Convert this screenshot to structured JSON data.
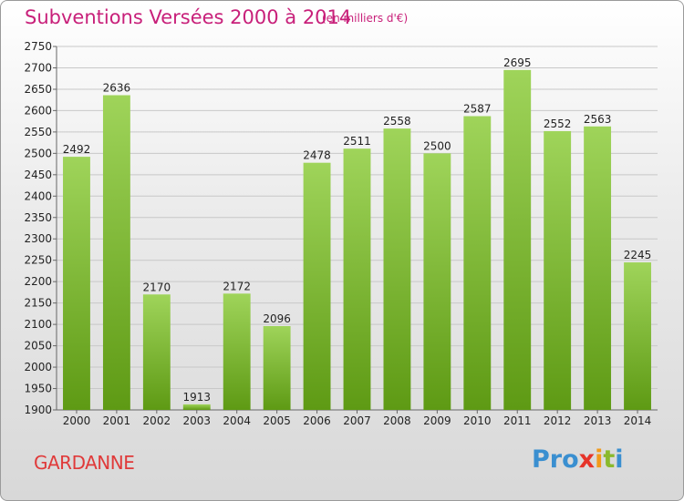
{
  "title": "Subventions Versées 2000 à 2014",
  "subtitle": "(en milliers d'€)",
  "city": "GARDANNE",
  "logo": {
    "p1": "Pro",
    "p2": "x",
    "p3": "i",
    "p4": "t",
    "p5": "i"
  },
  "colors": {
    "title": "#c8207a",
    "bar_top": "#9fd45a",
    "bar_bottom": "#5e9a14",
    "city": "#e03a3a"
  },
  "chart_data": {
    "type": "bar",
    "categories": [
      "2000",
      "2001",
      "2002",
      "2003",
      "2004",
      "2005",
      "2006",
      "2007",
      "2008",
      "2009",
      "2010",
      "2011",
      "2012",
      "2013",
      "2014"
    ],
    "values": [
      2492,
      2636,
      2170,
      1913,
      2172,
      2096,
      2478,
      2511,
      2558,
      2500,
      2587,
      2695,
      2552,
      2563,
      2245
    ],
    "title": "Subventions Versées 2000 à 2014",
    "subtitle": "(en milliers d'€)",
    "xlabel": "",
    "ylabel": "",
    "ylim": [
      1900,
      2750
    ],
    "yticks": [
      1900,
      1950,
      2000,
      2050,
      2100,
      2150,
      2200,
      2250,
      2300,
      2350,
      2400,
      2450,
      2500,
      2550,
      2600,
      2650,
      2700,
      2750
    ],
    "grid": true,
    "legend": "none"
  }
}
